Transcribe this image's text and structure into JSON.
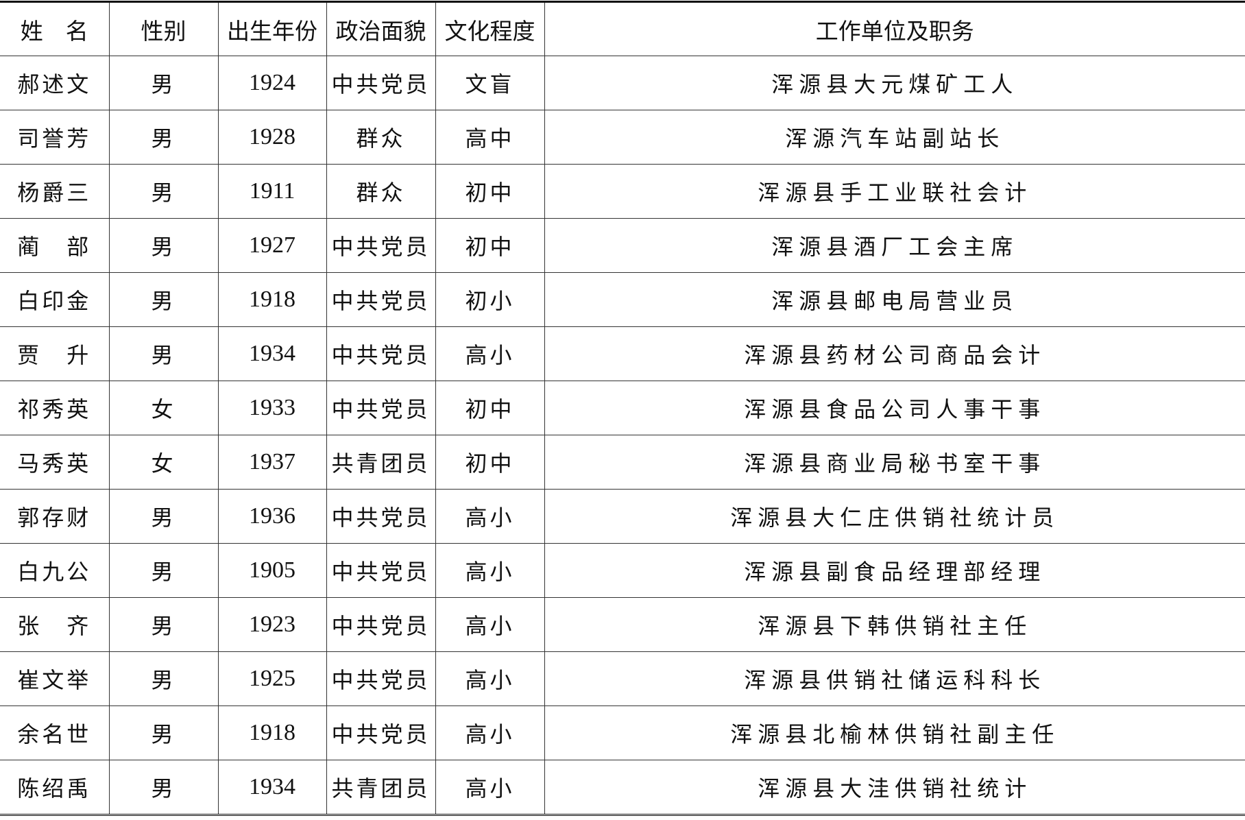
{
  "table": {
    "headers": [
      "姓　名",
      "性别",
      "出生年份",
      "政治面貌",
      "文化程度",
      "工作单位及职务"
    ],
    "rows": [
      [
        "郝述文",
        "男",
        "1924",
        "中共党员",
        "文盲",
        "浑源县大元煤矿工人"
      ],
      [
        "司誉芳",
        "男",
        "1928",
        "群众",
        "高中",
        "浑源汽车站副站长"
      ],
      [
        "杨爵三",
        "男",
        "1911",
        "群众",
        "初中",
        "浑源县手工业联社会计"
      ],
      [
        "蔺　部",
        "男",
        "1927",
        "中共党员",
        "初中",
        "浑源县酒厂工会主席"
      ],
      [
        "白印金",
        "男",
        "1918",
        "中共党员",
        "初小",
        "浑源县邮电局营业员"
      ],
      [
        "贾　升",
        "男",
        "1934",
        "中共党员",
        "高小",
        "浑源县药材公司商品会计"
      ],
      [
        "祁秀英",
        "女",
        "1933",
        "中共党员",
        "初中",
        "浑源县食品公司人事干事"
      ],
      [
        "马秀英",
        "女",
        "1937",
        "共青团员",
        "初中",
        "浑源县商业局秘书室干事"
      ],
      [
        "郭存财",
        "男",
        "1936",
        "中共党员",
        "高小",
        "浑源县大仁庄供销社统计员"
      ],
      [
        "白九公",
        "男",
        "1905",
        "中共党员",
        "高小",
        "浑源县副食品经理部经理"
      ],
      [
        "张　齐",
        "男",
        "1923",
        "中共党员",
        "高小",
        "浑源县下韩供销社主任"
      ],
      [
        "崔文举",
        "男",
        "1925",
        "中共党员",
        "高小",
        "浑源县供销社储运科科长"
      ],
      [
        "余名世",
        "男",
        "1918",
        "中共党员",
        "高小",
        "浑源县北榆林供销社副主任"
      ],
      [
        "陈绍禹",
        "男",
        "1934",
        "共青团员",
        "高小",
        "浑源县大洼供销社统计"
      ]
    ]
  }
}
